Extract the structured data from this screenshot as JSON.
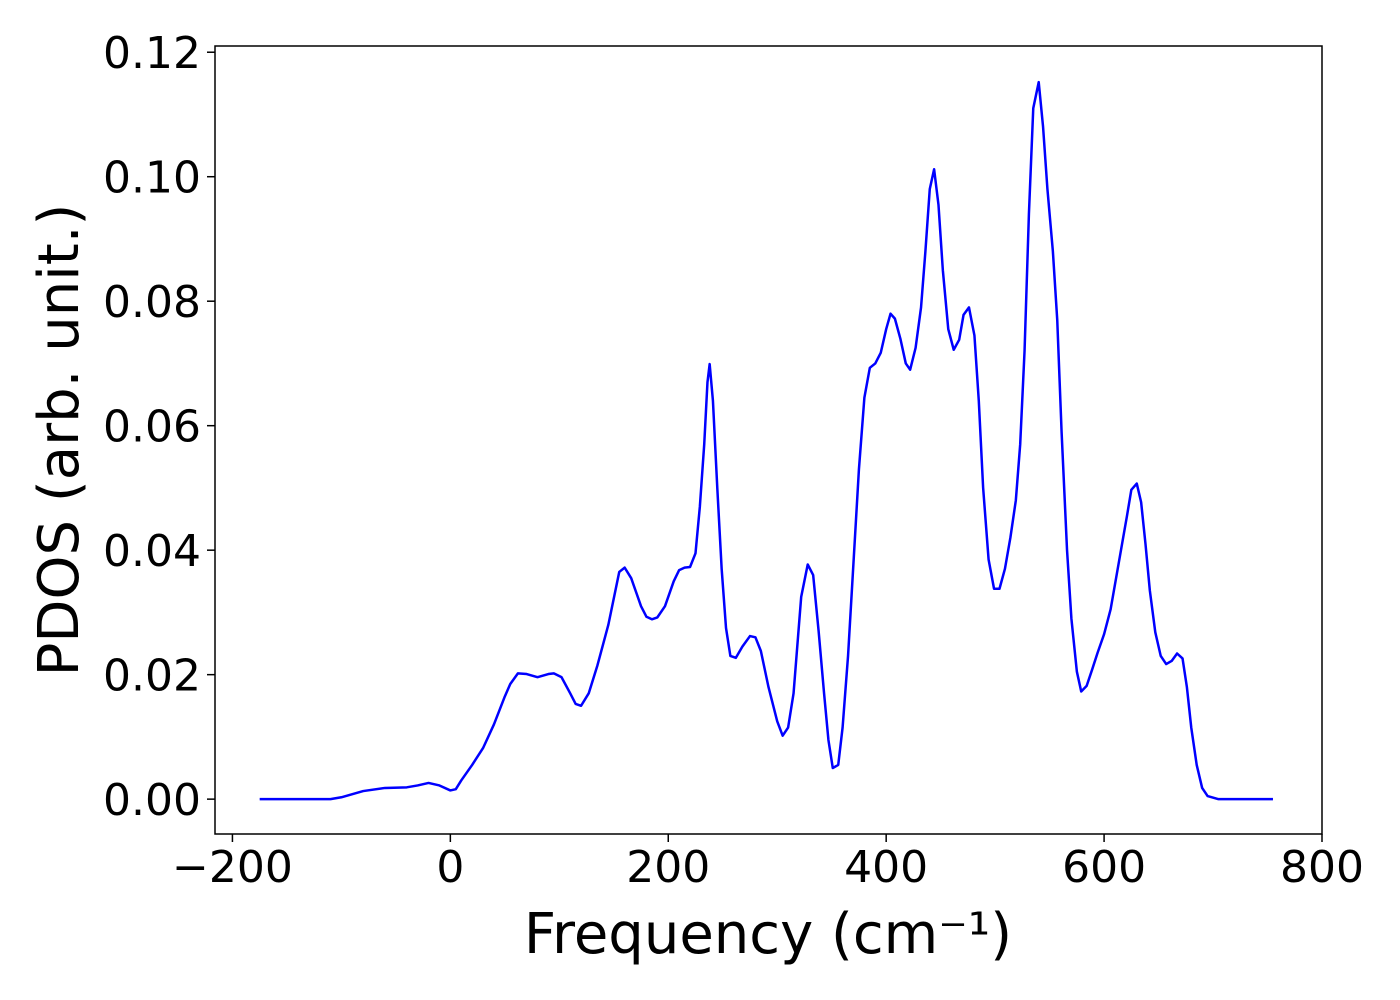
{
  "chart_data": {
    "type": "line",
    "xlabel": "Frequency (cm⁻¹)",
    "ylabel": "PDOS (arb. unit.)",
    "color": "#0000ff",
    "xlim": [
      -216,
      800
    ],
    "ylim": [
      -0.0056,
      0.121
    ],
    "xticks": [
      {
        "value": -200,
        "label": "−200"
      },
      0,
      200,
      400,
      600,
      800
    ],
    "yticks": [
      {
        "value": 0,
        "label": "0.00"
      },
      0.02,
      0.04,
      0.06,
      0.08,
      {
        "value": 0.1,
        "label": "0.10"
      },
      0.12
    ],
    "x": [
      -175,
      -110,
      -100,
      -80,
      -60,
      -40,
      -30,
      -20,
      -10,
      0,
      5,
      10,
      20,
      30,
      40,
      50,
      55,
      62,
      70,
      80,
      90,
      95,
      102,
      110,
      115,
      120,
      127,
      135,
      145,
      155,
      160,
      166,
      175,
      180,
      185,
      190,
      197,
      205,
      210,
      215,
      220,
      225,
      229,
      233,
      236,
      238,
      241,
      245,
      249,
      253,
      257,
      262,
      268,
      275,
      280,
      285,
      292,
      300,
      305,
      310,
      315,
      322,
      328,
      333,
      338,
      343,
      347,
      351,
      356,
      360,
      365,
      370,
      375,
      380,
      385,
      390,
      395,
      400,
      404,
      408,
      413,
      418,
      422,
      427,
      432,
      436,
      440,
      444,
      448,
      452,
      457,
      462,
      467,
      471,
      476,
      481,
      485,
      489,
      494,
      499,
      504,
      509,
      514,
      519,
      523,
      527,
      531,
      535,
      540,
      544,
      548,
      553,
      557,
      561,
      566,
      570,
      575,
      579,
      584,
      589,
      594,
      600,
      606,
      611,
      617,
      621,
      625,
      630,
      634,
      638,
      642,
      647,
      652,
      657,
      662,
      667,
      672,
      676,
      680,
      685,
      690,
      695,
      705,
      755
    ],
    "values": [
      0,
      0,
      0.0003,
      0.0013,
      0.0018,
      0.0019,
      0.0022,
      0.0026,
      0.0022,
      0.0014,
      0.0016,
      0.003,
      0.0055,
      0.0082,
      0.012,
      0.0165,
      0.0185,
      0.0202,
      0.0201,
      0.0196,
      0.0201,
      0.0202,
      0.0196,
      0.017,
      0.0153,
      0.015,
      0.017,
      0.0215,
      0.028,
      0.0365,
      0.0372,
      0.0355,
      0.031,
      0.0293,
      0.0289,
      0.0292,
      0.031,
      0.035,
      0.0368,
      0.0372,
      0.0373,
      0.0395,
      0.047,
      0.057,
      0.067,
      0.0699,
      0.064,
      0.05,
      0.037,
      0.0275,
      0.023,
      0.0227,
      0.0245,
      0.0262,
      0.026,
      0.0238,
      0.018,
      0.0125,
      0.0102,
      0.0115,
      0.017,
      0.0325,
      0.0377,
      0.036,
      0.027,
      0.017,
      0.0095,
      0.005,
      0.0055,
      0.0115,
      0.023,
      0.038,
      0.053,
      0.0645,
      0.0693,
      0.07,
      0.0717,
      0.0755,
      0.078,
      0.0772,
      0.074,
      0.07,
      0.069,
      0.0725,
      0.079,
      0.088,
      0.098,
      0.1012,
      0.0955,
      0.085,
      0.0755,
      0.0722,
      0.0738,
      0.0778,
      0.079,
      0.0745,
      0.064,
      0.05,
      0.0385,
      0.0338,
      0.0338,
      0.037,
      0.042,
      0.048,
      0.057,
      0.072,
      0.094,
      0.111,
      0.1152,
      0.108,
      0.098,
      0.088,
      0.077,
      0.059,
      0.04,
      0.029,
      0.0205,
      0.0173,
      0.0182,
      0.0208,
      0.0235,
      0.0265,
      0.0305,
      0.0355,
      0.0415,
      0.0455,
      0.0497,
      0.0507,
      0.0477,
      0.041,
      0.0335,
      0.0268,
      0.023,
      0.0217,
      0.0222,
      0.0234,
      0.0226,
      0.018,
      0.0115,
      0.0055,
      0.0018,
      0.0005,
      0,
      0
    ]
  }
}
